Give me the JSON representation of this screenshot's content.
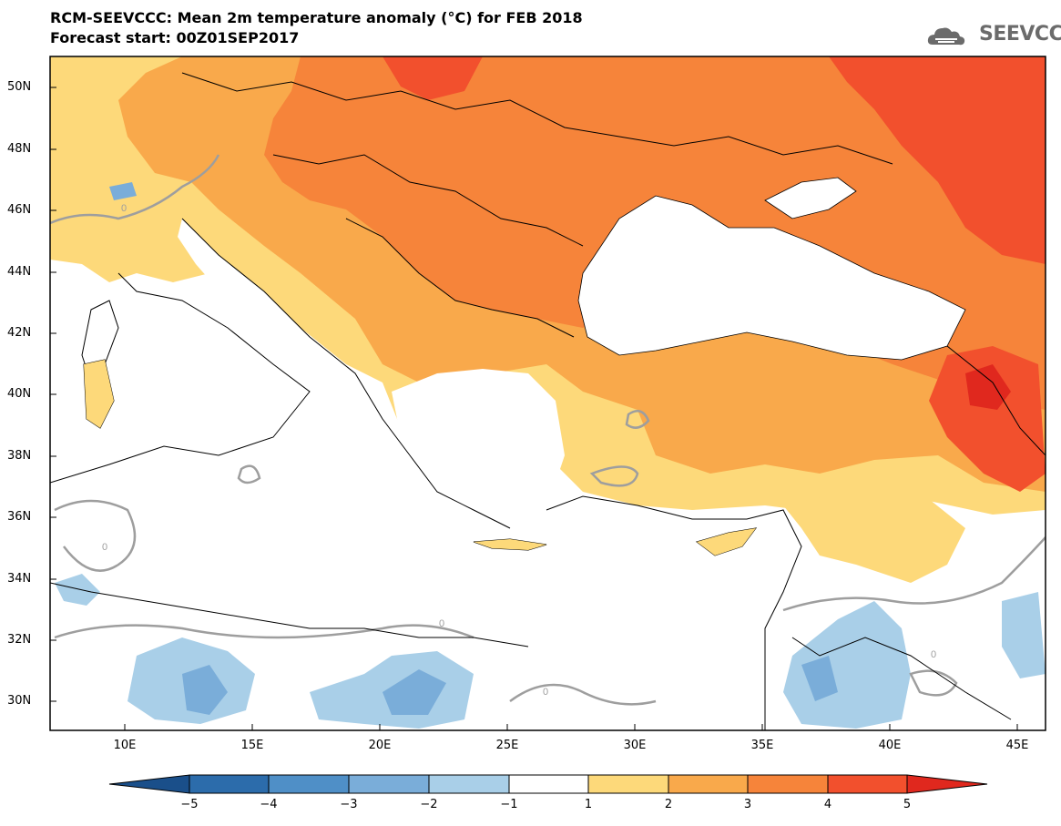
{
  "header": {
    "title": "RCM-SEEVCCC: Mean 2m temperature anomaly (°C) for FEB 2018",
    "subtitle": "Forecast start: 00Z01SEP2017",
    "logo_text": "SEEVCCC"
  },
  "map": {
    "latitude_labels": [
      "50N",
      "48N",
      "46N",
      "44N",
      "42N",
      "40N",
      "38N",
      "36N",
      "34N",
      "32N",
      "30N"
    ],
    "longitude_labels": [
      "10E",
      "15E",
      "20E",
      "25E",
      "30E",
      "35E",
      "40E",
      "45E"
    ],
    "contour_label": "0"
  },
  "colorbar": {
    "labels": [
      "−5",
      "−4",
      "−3",
      "−2",
      "−1",
      "1",
      "2",
      "3",
      "4",
      "5"
    ],
    "colors": [
      "#1a4f8a",
      "#2c6cab",
      "#4f8fc7",
      "#7aadd9",
      "#a9cfe8",
      "#ffffff",
      "#fdd97a",
      "#f9a94b",
      "#f6843a",
      "#f2502d",
      "#e0281e"
    ]
  }
}
